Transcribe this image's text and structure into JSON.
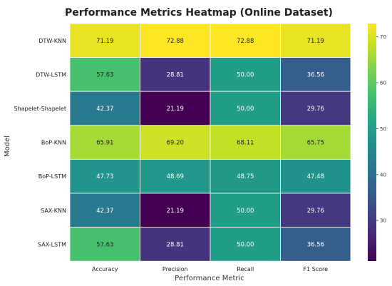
{
  "chart_data": {
    "type": "heatmap",
    "title": "Performance Metrics Heatmap (Online Dataset)",
    "xlabel": "Performance Metric",
    "ylabel": "Model",
    "columns": [
      "Accuracy",
      "Precision",
      "Recall",
      "F1 Score"
    ],
    "rows": [
      "DTW-KNN",
      "DTW-LSTM",
      "Shapelet-Shapelet",
      "BoP-KNN",
      "BoP-LSTM",
      "SAX-KNN",
      "SAX-LSTM"
    ],
    "values": [
      [
        71.19,
        72.88,
        72.88,
        71.19
      ],
      [
        57.63,
        28.81,
        50.0,
        36.56
      ],
      [
        42.37,
        21.19,
        50.0,
        29.76
      ],
      [
        65.91,
        69.2,
        68.11,
        65.75
      ],
      [
        47.73,
        48.69,
        48.75,
        47.48
      ],
      [
        42.37,
        21.19,
        50.0,
        29.76
      ],
      [
        57.63,
        28.81,
        50.0,
        36.56
      ]
    ],
    "colormap": "viridis",
    "vmin": 21.19,
    "vmax": 72.88,
    "colorbar_ticks": [
      30,
      40,
      50,
      60,
      70
    ]
  }
}
